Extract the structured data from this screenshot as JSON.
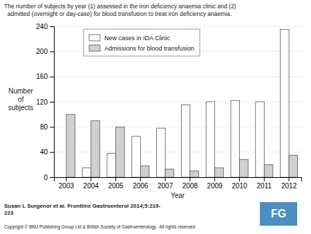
{
  "chart_data": {
    "type": "bar",
    "title": "The number of subjects by year (1) assessed in the iron deficiency anaemia clinic and (2)",
    "subtitle": "  admitted (overnight or day-case) for blood transfusion to treat iron deficiency anaemia.",
    "x_label": "Year",
    "y_label": "Number\nof\nsubjects",
    "categories": [
      "2003",
      "2004",
      "2005",
      "2006",
      "2007",
      "2008",
      "2009",
      "2010",
      "2011",
      "2012"
    ],
    "series": [
      {
        "name": "New cases in IDA Clinic",
        "color": "white",
        "values": [
          0,
          15,
          38,
          65,
          78,
          115,
          120,
          122,
          120,
          235
        ]
      },
      {
        "name": "Admissions for blood transfusion",
        "color": "#d0d0d0",
        "values": [
          100,
          90,
          80,
          18,
          13,
          10,
          15,
          28,
          20,
          35
        ]
      }
    ],
    "ylim": [
      0,
      240
    ],
    "yticks": [
      0,
      40,
      80,
      120,
      160,
      200,
      240
    ],
    "grid": true,
    "legend": "upper left",
    "annotations": [
      "Susan L Surgenor et al. Frontline Gastroenterol 2014;5:219-\n223",
      "Copyright © BMJ Publishing Group Ltd & British Society of Gastroenterology.  All rights reserved",
      "FG"
    ]
  }
}
